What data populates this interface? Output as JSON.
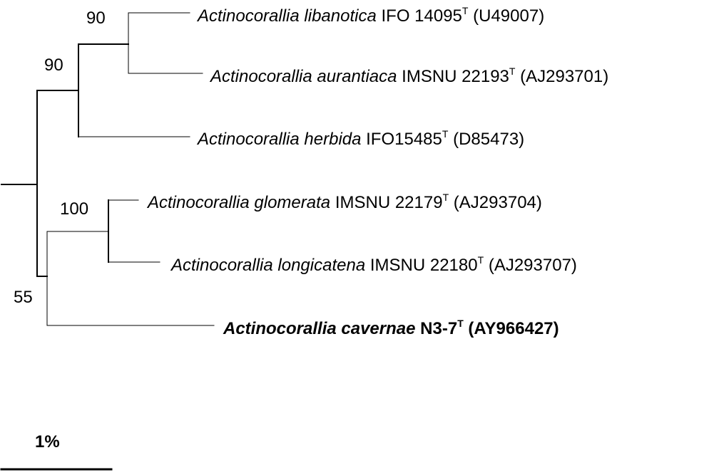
{
  "taxa": [
    {
      "genus": "Actinocorallia",
      "species": "libanotica",
      "strain": "IFO 14095",
      "type_mark": "T",
      "accession": "(U49007)",
      "bold": false
    },
    {
      "genus": "Actinocorallia",
      "species": "aurantiaca",
      "strain": "IMSNU 22193",
      "type_mark": "T",
      "accession": "(AJ293701)",
      "bold": false
    },
    {
      "genus": "Actinocorallia",
      "species": "herbida",
      "strain": "IFO15485",
      "type_mark": "T",
      "accession": "(D85473)",
      "bold": false
    },
    {
      "genus": "Actinocorallia",
      "species": "glomerata",
      "strain": "IMSNU 22179",
      "type_mark": "T",
      "accession": "(AJ293704)",
      "bold": false
    },
    {
      "genus": "Actinocorallia",
      "species": "longicatena",
      "strain": "IMSNU 22180",
      "type_mark": "T",
      "accession": "(AJ293707)",
      "bold": false
    },
    {
      "genus": "Actinocorallia",
      "species": "cavernae",
      "strain": "N3-7",
      "type_mark": "T",
      "accession": "(AY966427)",
      "bold": true
    }
  ],
  "bootstrap": {
    "libanotica_aurantiaca": "90",
    "libanotica_aurantiaca_herbida": "90",
    "glomerata_longicatena": "100",
    "glomerata_longicatena_cavernae": "55"
  },
  "scale_bar": {
    "label": "1%"
  }
}
